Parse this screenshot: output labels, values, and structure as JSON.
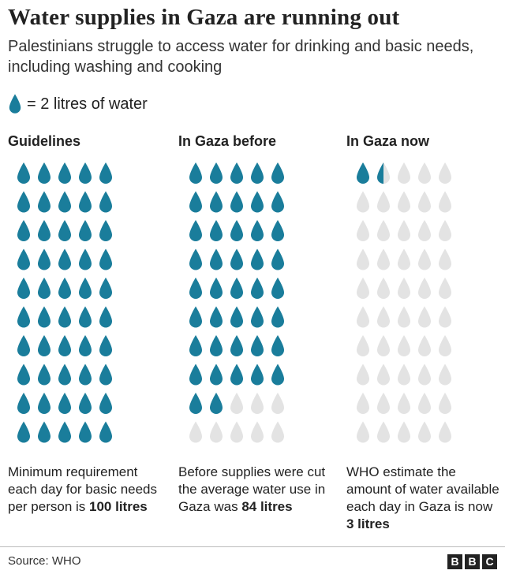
{
  "title": "Water supplies in Gaza are running out",
  "subtitle": "Palestinians struggle to access water for drinking and basic needs, including washing and cooking",
  "key": {
    "icon": "water-drop-icon",
    "label": "= 2 litres of water"
  },
  "colors": {
    "filled": "#1a7d9b",
    "empty": "#e3e3e3"
  },
  "columns": [
    {
      "header": "Guidelines",
      "caption_text": "Minimum requirement each day for basic needs per person is",
      "caption_value": "100 litres"
    },
    {
      "header": "In Gaza before",
      "caption_text": "Before supplies were cut the average water use in Gaza was",
      "caption_value": "84 litres"
    },
    {
      "header": "In Gaza now",
      "caption_text": "WHO estimate the amount of water available each day in Gaza is now",
      "caption_value": "3 litres"
    }
  ],
  "chart_data": {
    "type": "pictogram",
    "unit": "litres",
    "unit_per_icon": 2,
    "icons_per_column": 50,
    "categories": [
      "Guidelines",
      "In Gaza before",
      "In Gaza now"
    ],
    "values": [
      100,
      84,
      3
    ]
  },
  "footer": {
    "source": "Source: WHO",
    "logo_letters": [
      "B",
      "B",
      "C"
    ]
  }
}
